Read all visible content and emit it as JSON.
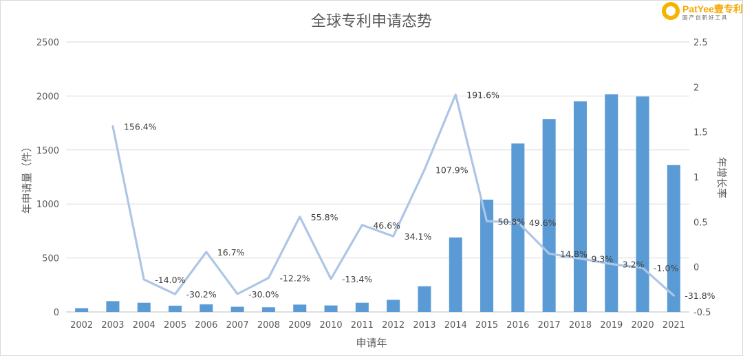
{
  "logo": {
    "brand": "PatYee壹专利",
    "slogan": "国产创新好工具"
  },
  "chart_data": {
    "type": "bar",
    "title": "全球专利申请态势",
    "xlabel": "申请年",
    "ylabel": "年申请量（件）",
    "y2label": "年增长率",
    "categories": [
      "2002",
      "2003",
      "2004",
      "2005",
      "2006",
      "2007",
      "2008",
      "2009",
      "2010",
      "2011",
      "2012",
      "2013",
      "2014",
      "2015",
      "2016",
      "2017",
      "2018",
      "2019",
      "2020",
      "2021"
    ],
    "ylim": [
      0,
      2500
    ],
    "yticks": [
      "0",
      "500",
      "1000",
      "1500",
      "2000",
      "2500"
    ],
    "y2lim": [
      -0.5,
      2.5
    ],
    "y2ticks": [
      "-0.5",
      "0",
      "0.5",
      "1",
      "1.5",
      "2",
      "2.5"
    ],
    "grid": true,
    "series": [
      {
        "kind": "bar",
        "axis": "left",
        "color": "#5b9bd5",
        "values": [
          35,
          100,
          85,
          58,
          70,
          48,
          43,
          68,
          60,
          85,
          112,
          238,
          690,
          1040,
          1560,
          1785,
          1950,
          2015,
          1995,
          1360
        ]
      },
      {
        "kind": "line",
        "axis": "right",
        "color": "#adc6e5",
        "values": [
          null,
          1.564,
          -0.14,
          -0.302,
          0.167,
          -0.3,
          -0.122,
          0.558,
          -0.134,
          0.466,
          0.341,
          1.079,
          1.916,
          0.508,
          0.496,
          0.148,
          0.093,
          0.032,
          -0.01,
          -0.318
        ],
        "labels": [
          "",
          "156.4%",
          "-14.0%",
          "-30.2%",
          "16.7%",
          "-30.0%",
          "-12.2%",
          "55.8%",
          "-13.4%",
          "46.6%",
          "34.1%",
          "107.9%",
          "191.6%",
          "50.8%",
          "49.6%",
          "14.8%",
          "9.3%",
          "3.2%",
          "-1.0%",
          "-31.8%"
        ]
      }
    ]
  }
}
